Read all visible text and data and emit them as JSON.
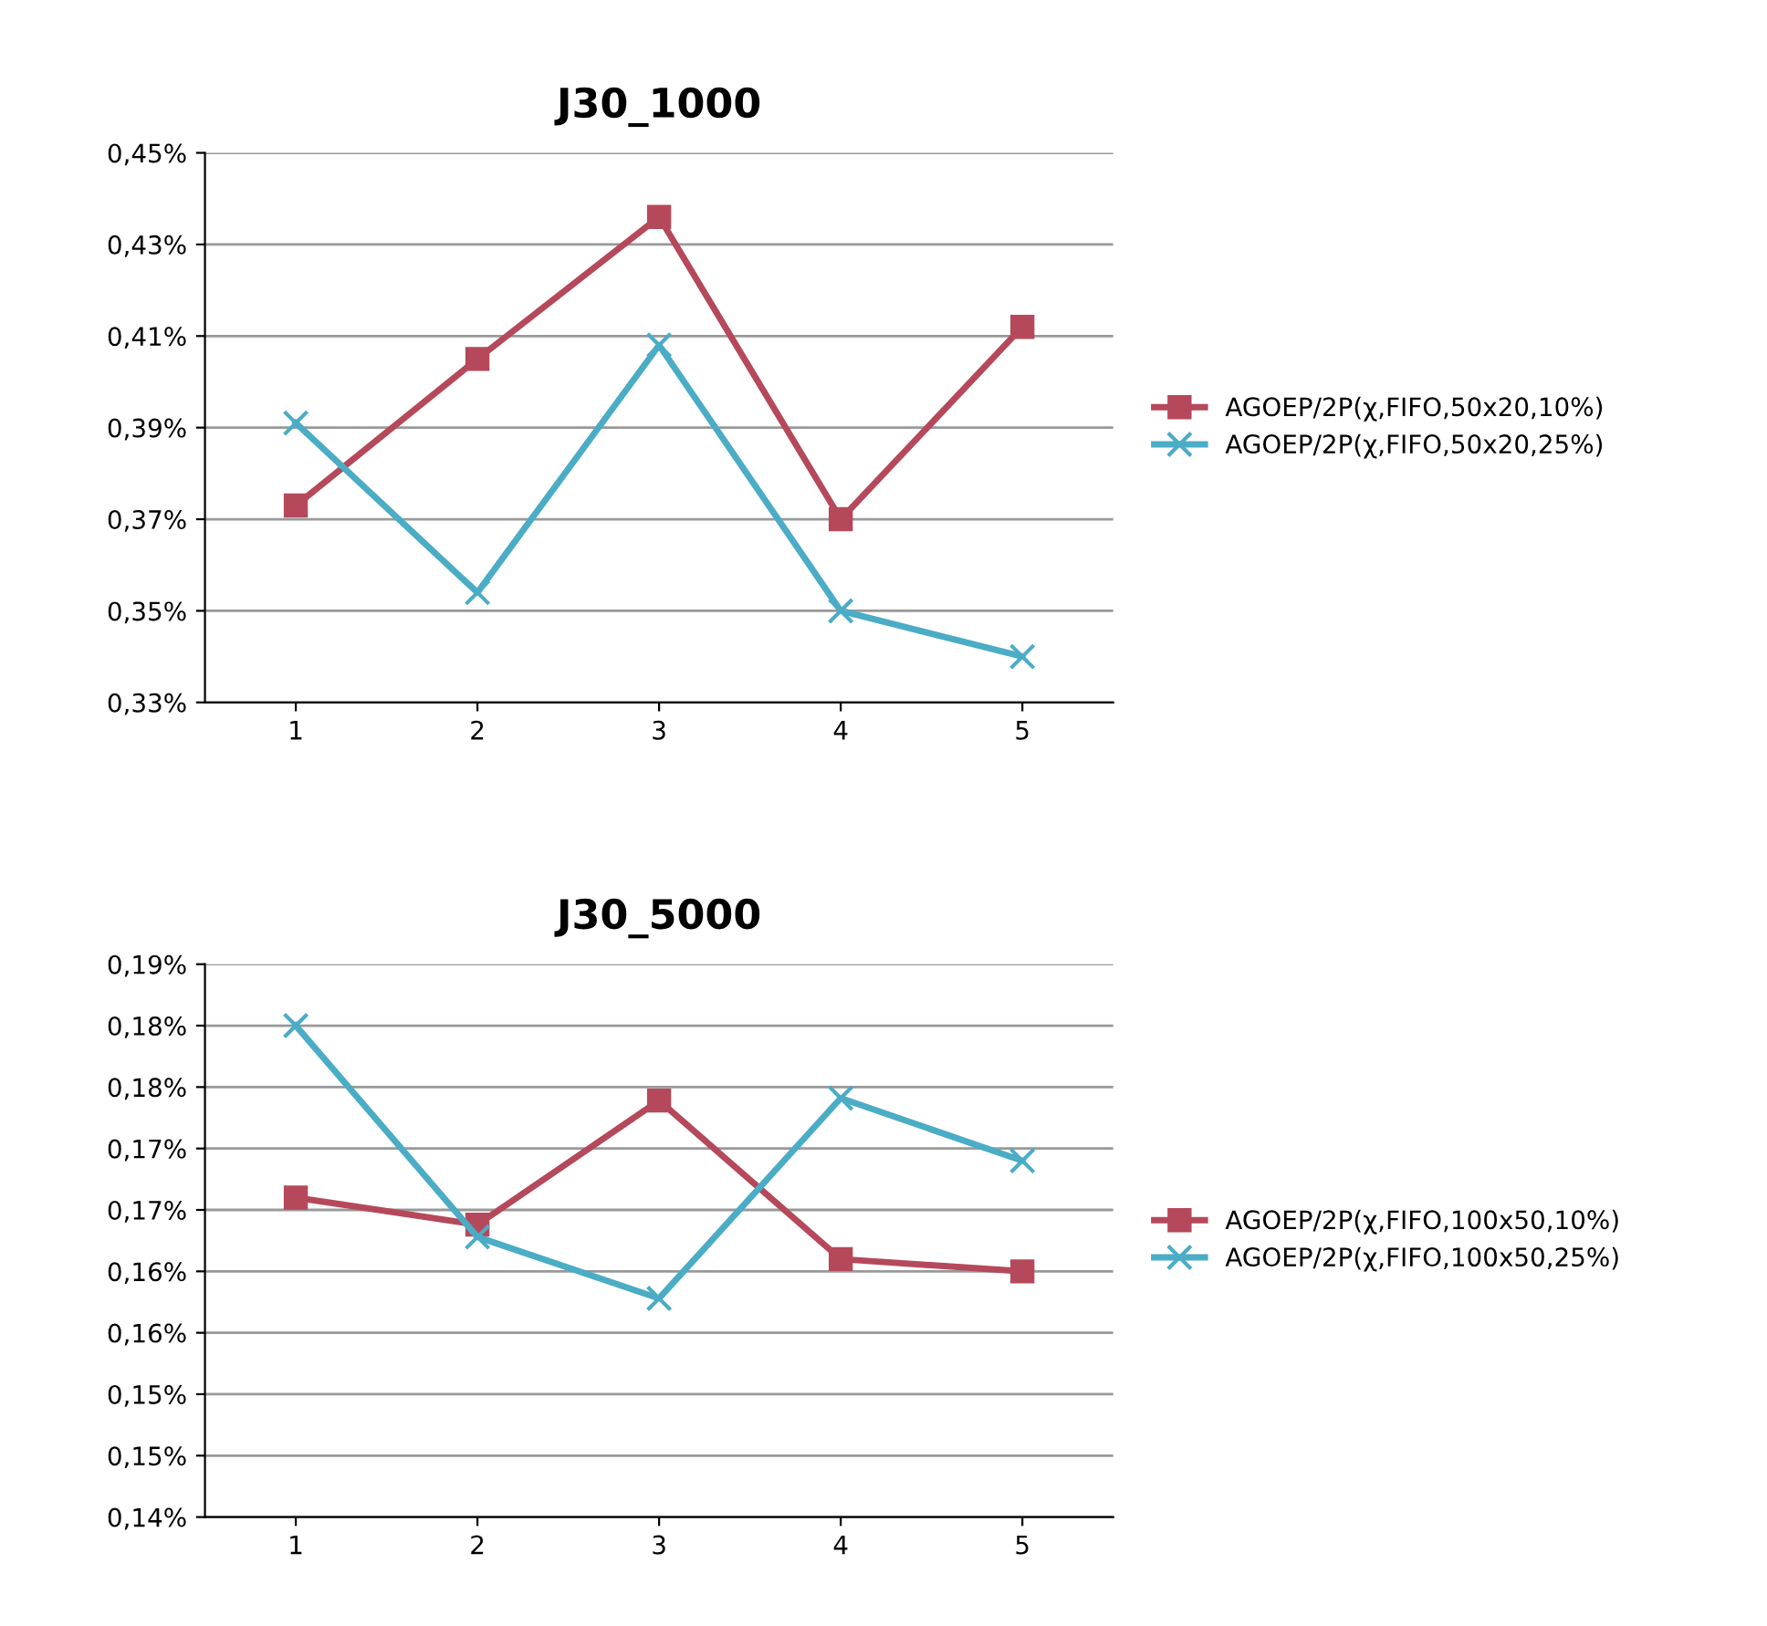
{
  "chart_data": [
    {
      "type": "line",
      "title": "J30_1000",
      "categories": [
        "1",
        "2",
        "3",
        "4",
        "5"
      ],
      "series": [
        {
          "name": "AGOEP/2P(χ,FIFO,50x20,10%)",
          "color": "#b5495b",
          "marker": "square",
          "values": [
            0.373,
            0.405,
            0.436,
            0.37,
            0.412
          ]
        },
        {
          "name": "AGOEP/2P(χ,FIFO,50x20,25%)",
          "color": "#4bacc6",
          "marker": "cross",
          "values": [
            0.391,
            0.354,
            0.408,
            0.35,
            0.34
          ]
        }
      ],
      "ylim": [
        0.33,
        0.45
      ],
      "yticks": [
        {
          "value": 0.33,
          "label": "0,33%"
        },
        {
          "value": 0.35,
          "label": "0,35%"
        },
        {
          "value": 0.37,
          "label": "0,37%"
        },
        {
          "value": 0.39,
          "label": "0,39%"
        },
        {
          "value": 0.41,
          "label": "0,41%"
        },
        {
          "value": 0.43,
          "label": "0,43%"
        },
        {
          "value": 0.45,
          "label": "0,45%"
        }
      ],
      "grid": "y",
      "legend": "right"
    },
    {
      "type": "line",
      "title": "J30_5000",
      "categories": [
        "1",
        "2",
        "3",
        "4",
        "5"
      ],
      "series": [
        {
          "name": "AGOEP/2P(χ,FIFO,100x50,10%)",
          "color": "#b5495b",
          "marker": "square",
          "values": [
            0.166,
            0.1638,
            0.1739,
            0.161,
            0.16
          ]
        },
        {
          "name": "AGOEP/2P(χ,FIFO,100x50,25%)",
          "color": "#4bacc6",
          "marker": "cross",
          "values": [
            0.18,
            0.1628,
            0.1578,
            0.1741,
            0.169
          ]
        }
      ],
      "ylim": [
        0.14,
        0.185
      ],
      "yticks": [
        {
          "value": 0.14,
          "label": "0,14%"
        },
        {
          "value": 0.145,
          "label": "0,15%"
        },
        {
          "value": 0.15,
          "label": "0,15%"
        },
        {
          "value": 0.155,
          "label": "0,16%"
        },
        {
          "value": 0.16,
          "label": "0,16%"
        },
        {
          "value": 0.165,
          "label": "0,17%"
        },
        {
          "value": 0.17,
          "label": "0,17%"
        },
        {
          "value": 0.175,
          "label": "0,18%"
        },
        {
          "value": 0.18,
          "label": "0,18%"
        },
        {
          "value": 0.185,
          "label": "0,19%"
        }
      ],
      "grid": "y",
      "legend": "right"
    }
  ]
}
